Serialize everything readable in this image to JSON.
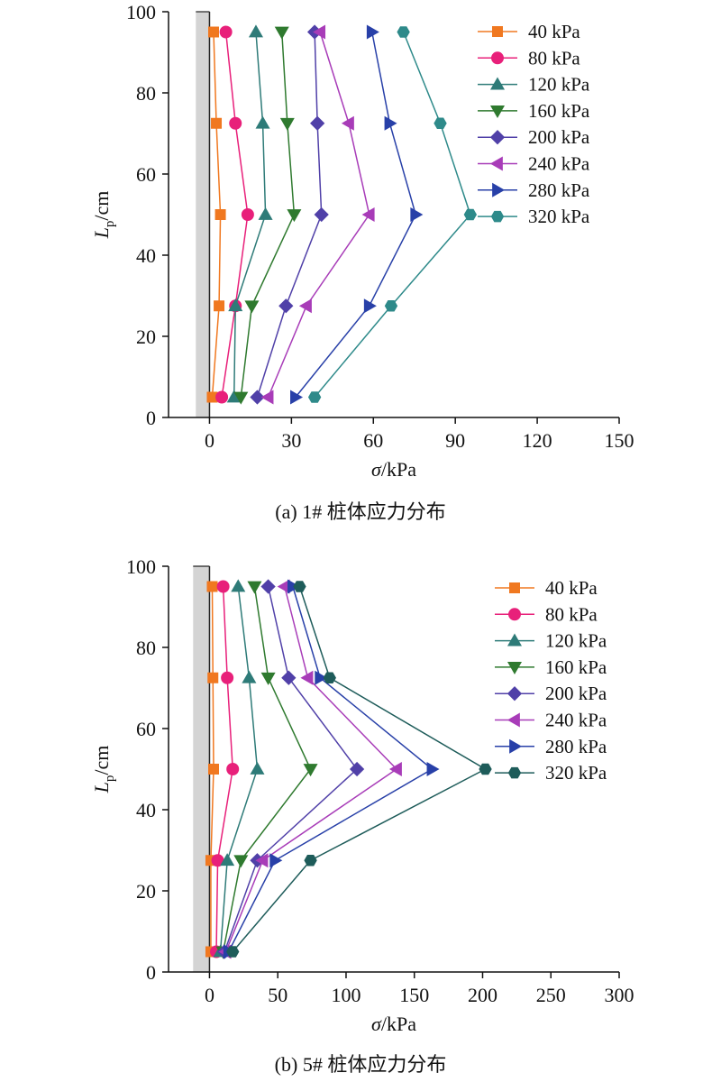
{
  "chart_data": [
    {
      "type": "line",
      "caption": "(a) 1# 桩体应力分布",
      "xlabel_sym": "σ",
      "xlabel_unit": "/kPa",
      "ylabel_sym": "L",
      "ylabel_sub": "p",
      "ylabel_unit": "/cm",
      "xlim": [
        -15,
        150
      ],
      "ylim": [
        0,
        100
      ],
      "xticks": [
        0,
        30,
        60,
        90,
        120,
        150
      ],
      "yticks": [
        0,
        20,
        40,
        60,
        80,
        100
      ],
      "pile_x": [
        -5,
        0
      ],
      "y": [
        5,
        27.5,
        50,
        72.5,
        95
      ],
      "series": [
        {
          "name": "40 kPa",
          "x": [
            1,
            3.5,
            4,
            2.5,
            1.5
          ],
          "color": "#f07820",
          "marker": "square"
        },
        {
          "name": "80 kPa",
          "x": [
            4.5,
            9.5,
            14,
            9.5,
            6
          ],
          "color": "#e8207a",
          "marker": "circle"
        },
        {
          "name": "120 kPa",
          "x": [
            9,
            9.5,
            20.5,
            19.5,
            17
          ],
          "color": "#2e7b78",
          "marker": "triangle-up"
        },
        {
          "name": "160 kPa",
          "x": [
            11.5,
            15.5,
            31,
            28.5,
            26.5
          ],
          "color": "#2f7a2f",
          "marker": "triangle-down"
        },
        {
          "name": "200 kPa",
          "x": [
            17.5,
            28,
            41,
            39.5,
            38.5
          ],
          "color": "#5040a8",
          "marker": "diamond"
        },
        {
          "name": "240 kPa",
          "x": [
            21.5,
            35.5,
            58.5,
            51,
            40.5
          ],
          "color": "#a83cb8",
          "marker": "triangle-left"
        },
        {
          "name": "280 kPa",
          "x": [
            31.5,
            58.5,
            75.5,
            66,
            59.5
          ],
          "color": "#2840a8",
          "marker": "triangle-right"
        },
        {
          "name": "320 kPa",
          "x": [
            38.5,
            66.5,
            95.5,
            84.5,
            71
          ],
          "color": "#2e8a8a",
          "marker": "hexagon"
        }
      ]
    },
    {
      "type": "line",
      "caption": "(b) 5# 桩体应力分布",
      "xlabel_sym": "σ",
      "xlabel_unit": "/kPa",
      "ylabel_sym": "L",
      "ylabel_sub": "p",
      "ylabel_unit": "/cm",
      "xlim": [
        -30,
        300
      ],
      "ylim": [
        0,
        100
      ],
      "xticks": [
        0,
        50,
        100,
        150,
        200,
        250,
        300
      ],
      "yticks": [
        0,
        20,
        40,
        60,
        80,
        100
      ],
      "pile_x": [
        -12,
        0
      ],
      "y": [
        5,
        27.5,
        50,
        72.5,
        95
      ],
      "series": [
        {
          "name": "40 kPa",
          "x": [
            1,
            1,
            3,
            2.5,
            2
          ],
          "color": "#f07820",
          "marker": "square"
        },
        {
          "name": "80 kPa",
          "x": [
            5,
            6,
            17,
            13,
            10
          ],
          "color": "#e8207a",
          "marker": "circle"
        },
        {
          "name": "120 kPa",
          "x": [
            8,
            13,
            35,
            29,
            21
          ],
          "color": "#2e7b78",
          "marker": "triangle-up"
        },
        {
          "name": "160 kPa",
          "x": [
            10,
            23,
            74,
            43,
            33
          ],
          "color": "#2f7a2f",
          "marker": "triangle-down"
        },
        {
          "name": "200 kPa",
          "x": [
            11,
            35,
            108,
            58,
            43
          ],
          "color": "#5040a8",
          "marker": "diamond"
        },
        {
          "name": "240 kPa",
          "x": [
            12,
            39,
            137,
            72,
            55
          ],
          "color": "#a83cb8",
          "marker": "triangle-left"
        },
        {
          "name": "280 kPa",
          "x": [
            14,
            48,
            163,
            81,
            61
          ],
          "color": "#2840a8",
          "marker": "triangle-right"
        },
        {
          "name": "320 kPa",
          "x": [
            17,
            74,
            202,
            88,
            66
          ],
          "color": "#1e5c5a",
          "marker": "hexagon"
        }
      ]
    }
  ]
}
